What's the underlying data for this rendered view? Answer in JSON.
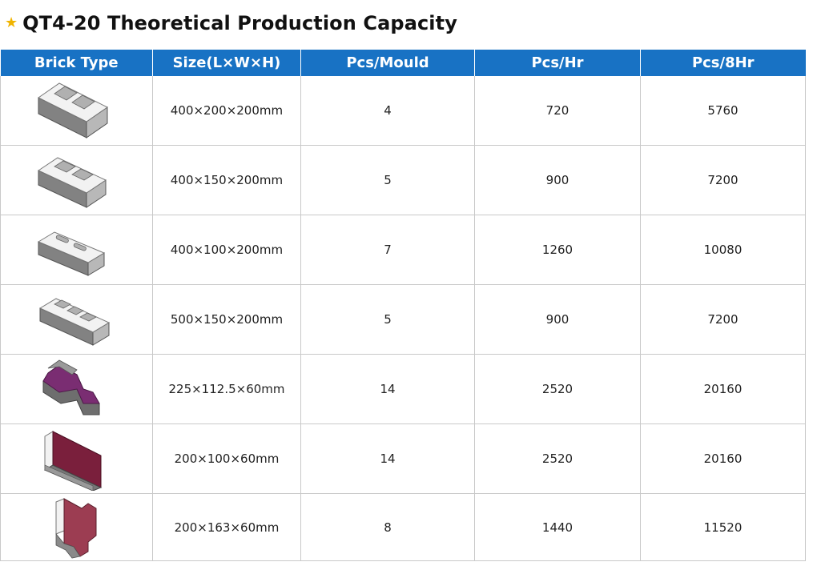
{
  "title": {
    "star": "★",
    "text": "QT4-20 Theoretical Production Capacity"
  },
  "table": {
    "headers": [
      "Brick Type",
      "Size(L×W×H)",
      "Pcs/Mould",
      "Pcs/Hr",
      "Pcs/8Hr"
    ],
    "rows": [
      {
        "brick_icon": "hollow-block-2-hole-icon",
        "size": "400×200×200mm",
        "pcs_mould": "4",
        "pcs_hr": "720",
        "pcs_8hr": "5760"
      },
      {
        "brick_icon": "hollow-block-2-hole-icon",
        "size": "400×150×200mm",
        "pcs_mould": "5",
        "pcs_hr": "900",
        "pcs_8hr": "7200"
      },
      {
        "brick_icon": "hollow-block-slim-icon",
        "size": "400×100×200mm",
        "pcs_mould": "7",
        "pcs_hr": "1260",
        "pcs_8hr": "10080"
      },
      {
        "brick_icon": "hollow-block-3-hole-icon",
        "size": "500×150×200mm",
        "pcs_mould": "5",
        "pcs_hr": "900",
        "pcs_8hr": "7200"
      },
      {
        "brick_icon": "zigzag-paver-icon",
        "size": "225×112.5×60mm",
        "pcs_mould": "14",
        "pcs_hr": "2520",
        "pcs_8hr": "20160"
      },
      {
        "brick_icon": "rectangular-paver-icon",
        "size": "200×100×60mm",
        "pcs_mould": "14",
        "pcs_hr": "2520",
        "pcs_8hr": "20160"
      },
      {
        "brick_icon": "i-shape-paver-icon",
        "size": "200×163×60mm",
        "pcs_mould": "8",
        "pcs_hr": "1440",
        "pcs_8hr": "11520"
      }
    ]
  },
  "colors": {
    "header_bg": "#1872c4",
    "header_text": "#ffffff",
    "grid": "#c9c9c9",
    "star": "#f0b400",
    "paver_purple": "#7a2d72",
    "paver_maroon": "#7a1f3c",
    "paver_red": "#9c3d52"
  }
}
